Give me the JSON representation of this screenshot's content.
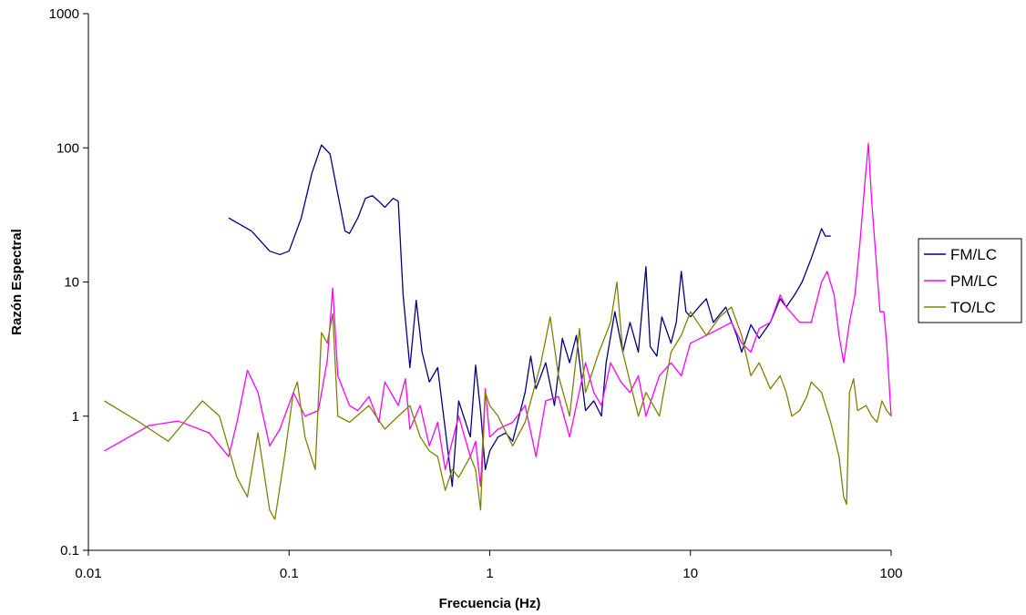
{
  "chart_data": {
    "type": "line",
    "title": "",
    "xlabel": "Frecuencia (Hz)",
    "ylabel": "Razón Espectral",
    "x_scale": "log",
    "y_scale": "log",
    "xlim": [
      0.01,
      100
    ],
    "ylim": [
      0.1,
      1000
    ],
    "x_ticks": [
      "0.01",
      "0.1",
      "1",
      "10",
      "100"
    ],
    "y_ticks": [
      "0.1",
      "1",
      "10",
      "100",
      "1000"
    ],
    "grid": false,
    "legend_position": "right",
    "series": [
      {
        "name": "FM/LC",
        "color": "#000080",
        "points": [
          [
            0.05,
            30
          ],
          [
            0.065,
            24
          ],
          [
            0.08,
            17
          ],
          [
            0.09,
            16
          ],
          [
            0.1,
            17
          ],
          [
            0.115,
            30
          ],
          [
            0.13,
            65
          ],
          [
            0.145,
            105
          ],
          [
            0.16,
            90
          ],
          [
            0.175,
            45
          ],
          [
            0.19,
            24
          ],
          [
            0.2,
            23
          ],
          [
            0.22,
            30
          ],
          [
            0.24,
            42
          ],
          [
            0.26,
            44
          ],
          [
            0.28,
            40
          ],
          [
            0.3,
            36
          ],
          [
            0.33,
            42
          ],
          [
            0.35,
            40
          ],
          [
            0.37,
            8
          ],
          [
            0.4,
            2.3
          ],
          [
            0.43,
            7.3
          ],
          [
            0.46,
            3
          ],
          [
            0.5,
            1.8
          ],
          [
            0.55,
            2.3
          ],
          [
            0.6,
            0.8
          ],
          [
            0.65,
            0.3
          ],
          [
            0.7,
            1.3
          ],
          [
            0.8,
            0.7
          ],
          [
            0.85,
            2.4
          ],
          [
            0.9,
            1.1
          ],
          [
            0.95,
            0.4
          ],
          [
            1.0,
            0.55
          ],
          [
            1.1,
            0.7
          ],
          [
            1.2,
            0.75
          ],
          [
            1.3,
            0.65
          ],
          [
            1.5,
            1.5
          ],
          [
            1.6,
            2.8
          ],
          [
            1.7,
            1.6
          ],
          [
            1.9,
            2.5
          ],
          [
            2.1,
            1.2
          ],
          [
            2.3,
            3.8
          ],
          [
            2.5,
            2.5
          ],
          [
            2.7,
            4.0
          ],
          [
            3.0,
            1.1
          ],
          [
            3.3,
            1.3
          ],
          [
            3.6,
            1.0
          ],
          [
            3.8,
            2.5
          ],
          [
            4.2,
            6.0
          ],
          [
            4.6,
            3.0
          ],
          [
            5.0,
            5.0
          ],
          [
            5.5,
            3.0
          ],
          [
            6.0,
            13
          ],
          [
            6.3,
            3.3
          ],
          [
            6.8,
            2.8
          ],
          [
            7.2,
            5.5
          ],
          [
            8.0,
            3.5
          ],
          [
            8.5,
            5.0
          ],
          [
            9.0,
            12
          ],
          [
            9.5,
            6.0
          ],
          [
            10,
            5.5
          ],
          [
            11,
            6.5
          ],
          [
            12,
            7.5
          ],
          [
            13,
            5.0
          ],
          [
            15,
            6.5
          ],
          [
            17,
            4.0
          ],
          [
            18,
            3.0
          ],
          [
            20,
            4.8
          ],
          [
            22,
            3.8
          ],
          [
            25,
            5.0
          ],
          [
            28,
            7.5
          ],
          [
            30,
            6.5
          ],
          [
            33,
            8.0
          ],
          [
            36,
            10
          ],
          [
            40,
            15
          ],
          [
            45,
            25
          ],
          [
            47,
            22
          ],
          [
            50,
            22
          ]
        ]
      },
      {
        "name": "PM/LC",
        "color": "#FF00FF",
        "points": [
          [
            0.012,
            0.55
          ],
          [
            0.02,
            0.85
          ],
          [
            0.028,
            0.92
          ],
          [
            0.04,
            0.75
          ],
          [
            0.05,
            0.5
          ],
          [
            0.055,
            0.9
          ],
          [
            0.062,
            2.2
          ],
          [
            0.07,
            1.5
          ],
          [
            0.08,
            0.6
          ],
          [
            0.09,
            0.8
          ],
          [
            0.105,
            1.5
          ],
          [
            0.12,
            1.0
          ],
          [
            0.14,
            1.1
          ],
          [
            0.155,
            2.6
          ],
          [
            0.165,
            9.0
          ],
          [
            0.175,
            2.0
          ],
          [
            0.2,
            1.2
          ],
          [
            0.22,
            1.1
          ],
          [
            0.25,
            1.4
          ],
          [
            0.28,
            0.9
          ],
          [
            0.3,
            1.8
          ],
          [
            0.35,
            1.2
          ],
          [
            0.38,
            1.9
          ],
          [
            0.4,
            0.8
          ],
          [
            0.45,
            1.2
          ],
          [
            0.5,
            0.6
          ],
          [
            0.55,
            0.9
          ],
          [
            0.6,
            0.4
          ],
          [
            0.65,
            0.65
          ],
          [
            0.7,
            1.0
          ],
          [
            0.75,
            0.7
          ],
          [
            0.8,
            0.5
          ],
          [
            0.85,
            0.65
          ],
          [
            0.9,
            0.3
          ],
          [
            0.95,
            1.6
          ],
          [
            1.0,
            0.7
          ],
          [
            1.1,
            0.8
          ],
          [
            1.3,
            0.9
          ],
          [
            1.5,
            1.2
          ],
          [
            1.7,
            0.5
          ],
          [
            1.9,
            1.3
          ],
          [
            2.2,
            1.4
          ],
          [
            2.5,
            0.7
          ],
          [
            2.7,
            1.2
          ],
          [
            3.0,
            2.5
          ],
          [
            3.3,
            1.5
          ],
          [
            3.6,
            1.2
          ],
          [
            4.0,
            2.5
          ],
          [
            4.5,
            1.8
          ],
          [
            5.0,
            1.5
          ],
          [
            5.5,
            2.0
          ],
          [
            6.0,
            1.0
          ],
          [
            7.0,
            2.0
          ],
          [
            8.0,
            2.5
          ],
          [
            9.0,
            2.0
          ],
          [
            10,
            3.5
          ],
          [
            12,
            4.0
          ],
          [
            14,
            4.5
          ],
          [
            16,
            5.0
          ],
          [
            18,
            3.5
          ],
          [
            20,
            3.0
          ],
          [
            22,
            4.5
          ],
          [
            25,
            5.0
          ],
          [
            28,
            8.0
          ],
          [
            30,
            6.5
          ],
          [
            35,
            5.0
          ],
          [
            40,
            5.0
          ],
          [
            45,
            10
          ],
          [
            48,
            12
          ],
          [
            52,
            8
          ],
          [
            55,
            4
          ],
          [
            58,
            2.5
          ],
          [
            62,
            5
          ],
          [
            66,
            8
          ],
          [
            70,
            20
          ],
          [
            74,
            55
          ],
          [
            77,
            108
          ],
          [
            80,
            40
          ],
          [
            85,
            12
          ],
          [
            88,
            6
          ],
          [
            92,
            6
          ],
          [
            95,
            3.5
          ],
          [
            100,
            1.0
          ]
        ]
      },
      {
        "name": "TO/LC",
        "color": "#808000",
        "points": [
          [
            0.012,
            1.3
          ],
          [
            0.018,
            0.9
          ],
          [
            0.025,
            0.65
          ],
          [
            0.03,
            0.9
          ],
          [
            0.037,
            1.3
          ],
          [
            0.045,
            1.0
          ],
          [
            0.055,
            0.35
          ],
          [
            0.062,
            0.25
          ],
          [
            0.07,
            0.75
          ],
          [
            0.08,
            0.2
          ],
          [
            0.085,
            0.17
          ],
          [
            0.095,
            0.5
          ],
          [
            0.105,
            1.5
          ],
          [
            0.11,
            1.8
          ],
          [
            0.12,
            0.7
          ],
          [
            0.135,
            0.4
          ],
          [
            0.145,
            4.2
          ],
          [
            0.155,
            3.5
          ],
          [
            0.165,
            5.8
          ],
          [
            0.175,
            1.0
          ],
          [
            0.2,
            0.9
          ],
          [
            0.25,
            1.2
          ],
          [
            0.3,
            0.8
          ],
          [
            0.35,
            1.0
          ],
          [
            0.4,
            1.2
          ],
          [
            0.45,
            0.7
          ],
          [
            0.5,
            0.55
          ],
          [
            0.55,
            0.5
          ],
          [
            0.6,
            0.28
          ],
          [
            0.65,
            0.4
          ],
          [
            0.7,
            0.35
          ],
          [
            0.8,
            0.5
          ],
          [
            0.85,
            0.4
          ],
          [
            0.9,
            0.2
          ],
          [
            0.95,
            1.5
          ],
          [
            1.0,
            1.2
          ],
          [
            1.1,
            1.0
          ],
          [
            1.3,
            0.6
          ],
          [
            1.5,
            0.9
          ],
          [
            1.8,
            2.5
          ],
          [
            2.0,
            5.5
          ],
          [
            2.2,
            2.0
          ],
          [
            2.5,
            1.0
          ],
          [
            2.8,
            4.5
          ],
          [
            3.0,
            1.5
          ],
          [
            3.5,
            3.0
          ],
          [
            4.0,
            5.0
          ],
          [
            4.3,
            10
          ],
          [
            4.6,
            3.0
          ],
          [
            5.0,
            1.8
          ],
          [
            5.5,
            1.0
          ],
          [
            6.0,
            1.5
          ],
          [
            7.0,
            1.0
          ],
          [
            8.0,
            3.0
          ],
          [
            9.0,
            4.0
          ],
          [
            10,
            6.0
          ],
          [
            12,
            4.0
          ],
          [
            14,
            5.5
          ],
          [
            16,
            6.5
          ],
          [
            18,
            4.0
          ],
          [
            20,
            2.0
          ],
          [
            22,
            2.5
          ],
          [
            25,
            1.6
          ],
          [
            28,
            2.0
          ],
          [
            30,
            1.5
          ],
          [
            32,
            1.0
          ],
          [
            35,
            1.1
          ],
          [
            38,
            1.4
          ],
          [
            40,
            1.8
          ],
          [
            45,
            1.5
          ],
          [
            50,
            0.9
          ],
          [
            55,
            0.5
          ],
          [
            58,
            0.25
          ],
          [
            60,
            0.22
          ],
          [
            62,
            1.5
          ],
          [
            65,
            1.9
          ],
          [
            68,
            1.1
          ],
          [
            75,
            1.2
          ],
          [
            80,
            1.0
          ],
          [
            85,
            0.9
          ],
          [
            90,
            1.3
          ],
          [
            95,
            1.1
          ],
          [
            100,
            1.0
          ]
        ]
      }
    ]
  }
}
